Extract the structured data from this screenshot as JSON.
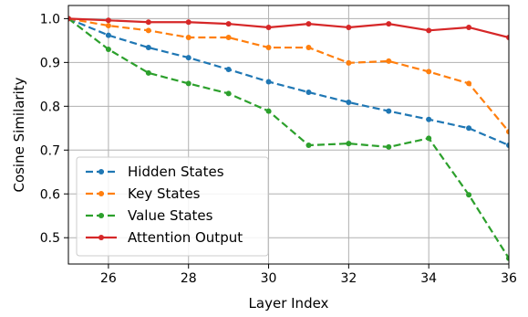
{
  "chart_data": {
    "type": "line",
    "xlabel": "Layer Index",
    "ylabel": "Cosine Similarity",
    "xlim": [
      25,
      36
    ],
    "ylim": [
      0.44,
      1.03
    ],
    "xticks": [
      26,
      28,
      30,
      32,
      34,
      36
    ],
    "yticks": [
      0.5,
      0.6,
      0.7,
      0.8,
      0.9,
      1.0
    ],
    "ytick_labels": [
      "0.5",
      "0.6",
      "0.7",
      "0.8",
      "0.9",
      "1.0"
    ],
    "grid": true,
    "legend_position": "lower-left",
    "x": [
      25,
      26,
      27,
      28,
      29,
      30,
      31,
      32,
      33,
      34,
      35,
      36
    ],
    "series": [
      {
        "name": "Hidden States",
        "color": "#1f77b4",
        "dashed": true,
        "values": [
          1.0,
          0.962,
          0.934,
          0.911,
          0.884,
          0.856,
          0.832,
          0.809,
          0.789,
          0.77,
          0.75,
          0.711
        ]
      },
      {
        "name": "Key States",
        "color": "#ff7f0e",
        "dashed": true,
        "values": [
          1.0,
          0.984,
          0.973,
          0.957,
          0.957,
          0.934,
          0.934,
          0.899,
          0.903,
          0.879,
          0.852,
          0.742
        ]
      },
      {
        "name": "Value States",
        "color": "#2ca02c",
        "dashed": true,
        "values": [
          1.0,
          0.93,
          0.876,
          0.852,
          0.829,
          0.789,
          0.711,
          0.715,
          0.707,
          0.727,
          0.598,
          0.453
        ]
      },
      {
        "name": "Attention Output",
        "color": "#d62728",
        "dashed": false,
        "values": [
          1.0,
          0.996,
          0.992,
          0.992,
          0.988,
          0.98,
          0.988,
          0.98,
          0.988,
          0.973,
          0.98,
          0.957
        ]
      }
    ]
  }
}
